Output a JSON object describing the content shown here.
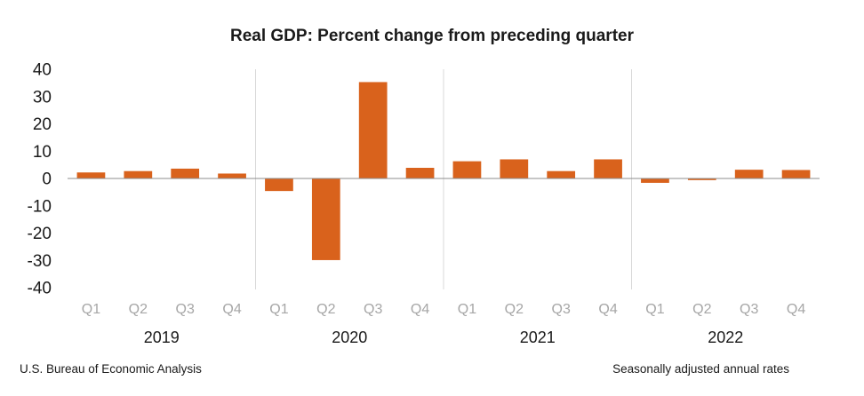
{
  "chart_data": {
    "type": "bar",
    "title": "Real GDP:  Percent change from preceding quarter",
    "xlabel": "",
    "ylabel": "",
    "ylim": [
      -40,
      40
    ],
    "yticks": [
      "40",
      "30",
      "20",
      "10",
      "0",
      "-10",
      "-20",
      "-30",
      "-40"
    ],
    "ytick_values": [
      40,
      30,
      20,
      10,
      0,
      -10,
      -20,
      -30,
      -40
    ],
    "categories": [
      "Q1",
      "Q2",
      "Q3",
      "Q4",
      "Q1",
      "Q2",
      "Q3",
      "Q4",
      "Q1",
      "Q2",
      "Q3",
      "Q4",
      "Q1",
      "Q2",
      "Q3",
      "Q4"
    ],
    "groups": [
      "2019",
      "2020",
      "2021",
      "2022"
    ],
    "values": [
      2.2,
      2.7,
      3.6,
      1.8,
      -4.6,
      -29.9,
      35.3,
      3.9,
      6.3,
      7.0,
      2.7,
      7.0,
      -1.6,
      -0.6,
      3.2,
      3.1
    ],
    "bar_color": "#d9621c",
    "grid": false,
    "legend": "none"
  },
  "footer": {
    "source": "U.S. Bureau of Economic Analysis",
    "note": "Seasonally adjusted annual rates"
  }
}
